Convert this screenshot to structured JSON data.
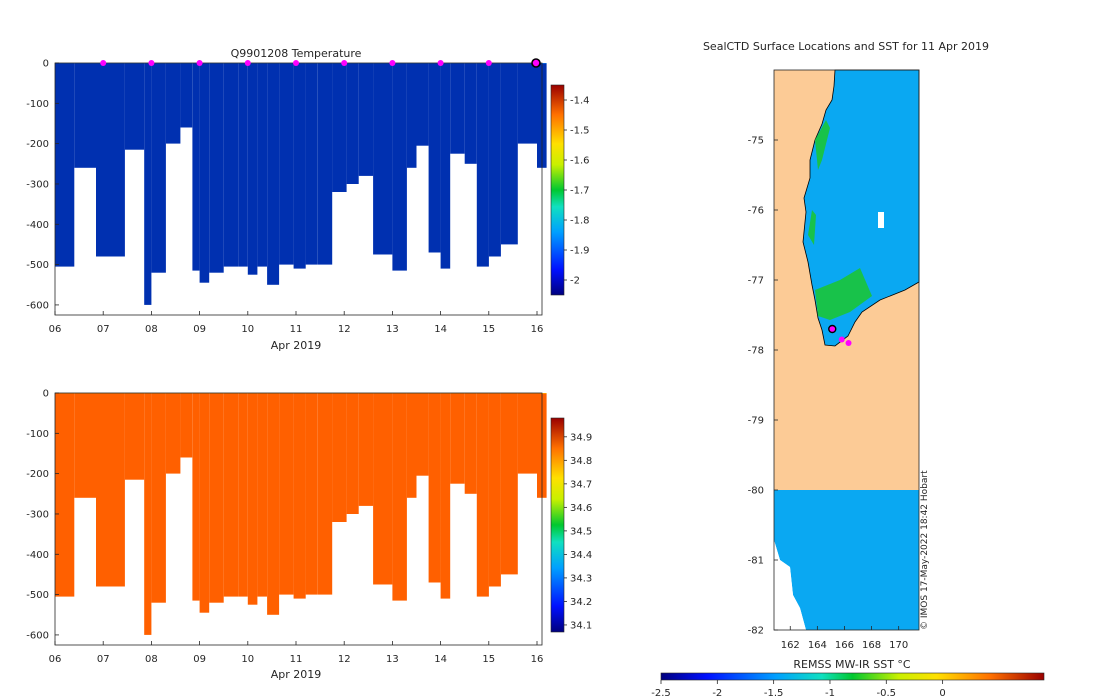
{
  "figure": {
    "credit": "© IMOS 17-May-2022 18:42 Hobart"
  },
  "chart_data": [
    {
      "id": "temperature-section",
      "type": "heatmap",
      "title": "Q9901208  Temperature",
      "xlabel": "Apr 2019",
      "ylabel": "",
      "x_ticks": [
        "06",
        "07",
        "08",
        "09",
        "10",
        "11",
        "12",
        "13",
        "14",
        "15",
        "16"
      ],
      "x_range": [
        6,
        16
      ],
      "y_ticks": [
        0,
        -100,
        -200,
        -300,
        -400,
        -500,
        -600
      ],
      "ylim": [
        -625,
        0
      ],
      "colorbar": {
        "ticks": [
          "-1.4",
          "-1.5",
          "-1.6",
          "-1.7",
          "-1.8",
          "-1.9",
          "-2"
        ],
        "range": [
          -2.05,
          -1.35
        ]
      },
      "surface_marker_days": [
        7,
        8,
        9,
        10,
        11,
        12,
        13,
        14,
        15
      ],
      "highlight_day": 16,
      "profiles": [
        {
          "day": 6.0,
          "max_depth": 505
        },
        {
          "day": 6.4,
          "max_depth": 260
        },
        {
          "day": 6.85,
          "max_depth": 480
        },
        {
          "day": 7.1,
          "max_depth": 480
        },
        {
          "day": 7.45,
          "max_depth": 215
        },
        {
          "day": 7.85,
          "max_depth": 600
        },
        {
          "day": 8.0,
          "max_depth": 520
        },
        {
          "day": 8.3,
          "max_depth": 200
        },
        {
          "day": 8.6,
          "max_depth": 160
        },
        {
          "day": 8.85,
          "max_depth": 515
        },
        {
          "day": 9.0,
          "max_depth": 545
        },
        {
          "day": 9.2,
          "max_depth": 520
        },
        {
          "day": 9.5,
          "max_depth": 505
        },
        {
          "day": 9.8,
          "max_depth": 505
        },
        {
          "day": 10.0,
          "max_depth": 525
        },
        {
          "day": 10.2,
          "max_depth": 505
        },
        {
          "day": 10.4,
          "max_depth": 550
        },
        {
          "day": 10.65,
          "max_depth": 500
        },
        {
          "day": 10.95,
          "max_depth": 510
        },
        {
          "day": 11.2,
          "max_depth": 500
        },
        {
          "day": 11.45,
          "max_depth": 500
        },
        {
          "day": 11.75,
          "max_depth": 320
        },
        {
          "day": 12.05,
          "max_depth": 300
        },
        {
          "day": 12.3,
          "max_depth": 280
        },
        {
          "day": 12.6,
          "max_depth": 475
        },
        {
          "day": 13.0,
          "max_depth": 515
        },
        {
          "day": 13.3,
          "max_depth": 260
        },
        {
          "day": 13.5,
          "max_depth": 205
        },
        {
          "day": 13.75,
          "max_depth": 470
        },
        {
          "day": 14.0,
          "max_depth": 510
        },
        {
          "day": 14.2,
          "max_depth": 225
        },
        {
          "day": 14.5,
          "max_depth": 250
        },
        {
          "day": 14.75,
          "max_depth": 505
        },
        {
          "day": 15.0,
          "max_depth": 480
        },
        {
          "day": 15.25,
          "max_depth": 450
        },
        {
          "day": 15.6,
          "max_depth": 200
        },
        {
          "day": 16.0,
          "max_depth": 260
        }
      ]
    },
    {
      "id": "salinity-section",
      "type": "heatmap",
      "title": "",
      "xlabel": "Apr 2019",
      "ylabel": "",
      "x_ticks": [
        "06",
        "07",
        "08",
        "09",
        "10",
        "11",
        "12",
        "13",
        "14",
        "15",
        "16"
      ],
      "x_range": [
        6,
        16
      ],
      "y_ticks": [
        0,
        -100,
        -200,
        -300,
        -400,
        -500,
        -600
      ],
      "ylim": [
        -625,
        0
      ],
      "colorbar": {
        "ticks": [
          "34.9",
          "34.8",
          "34.7",
          "34.6",
          "34.5",
          "34.4",
          "34.3",
          "34.2",
          "34.1"
        ],
        "range": [
          34.07,
          34.98
        ]
      }
    },
    {
      "id": "sst-map",
      "type": "heatmap",
      "title": "SealCTD Surface Locations and SST for 11 Apr 2019",
      "xlabel": "",
      "ylabel": "",
      "x_ticks": [
        "162",
        "164",
        "166",
        "168",
        "170"
      ],
      "xlim": [
        160.8,
        171.5
      ],
      "y_ticks": [
        "-75",
        "-76",
        "-77",
        "-78",
        "-79",
        "-80",
        "-81",
        "-82"
      ],
      "ylim": [
        -82,
        -74
      ],
      "colorbar": {
        "label": "REMSS MW-IR SST °C",
        "ticks": [
          "-2.5",
          "-2",
          "-1.5",
          "-1",
          "-0.5",
          "0"
        ],
        "range": [
          -2.5,
          0.9
        ]
      },
      "ice_shelf_edge_lat": -80,
      "seal_locations": [
        {
          "lon": 165.1,
          "lat": -77.7
        },
        {
          "lon": 165.8,
          "lat": -77.85
        },
        {
          "lon": 166.3,
          "lat": -77.9
        }
      ]
    }
  ]
}
